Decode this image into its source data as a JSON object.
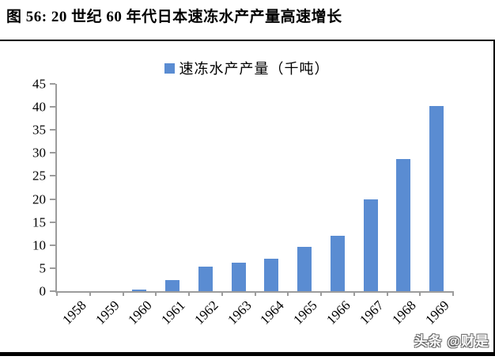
{
  "report": {
    "title": "图 56:  20 世纪 60 年代日本速冻水产产量高速增长"
  },
  "watermark": {
    "text": "头条 @财是"
  },
  "chart_data": {
    "type": "bar",
    "title": "20 世纪 60 年代日本速冻水产产量高速增长",
    "legend": "速冻水产产量（千吨）",
    "legend_position": "top-center",
    "categories": [
      "1958",
      "1959",
      "1960",
      "1961",
      "1962",
      "1963",
      "1964",
      "1965",
      "1966",
      "1967",
      "1968",
      "1969"
    ],
    "values": [
      0,
      0,
      0.4,
      2.4,
      5.4,
      6.1,
      7.1,
      9.6,
      12.0,
      20.0,
      28.6,
      40.2
    ],
    "xlabel": "",
    "ylabel": "",
    "ylim": [
      0,
      45
    ],
    "yticks": [
      0,
      5,
      10,
      15,
      20,
      25,
      30,
      35,
      40,
      45
    ],
    "grid": false,
    "x_tick_label_rotation_deg": -45,
    "bar_color": "#5A8CD2",
    "axis_color": "#9C9C9C"
  }
}
